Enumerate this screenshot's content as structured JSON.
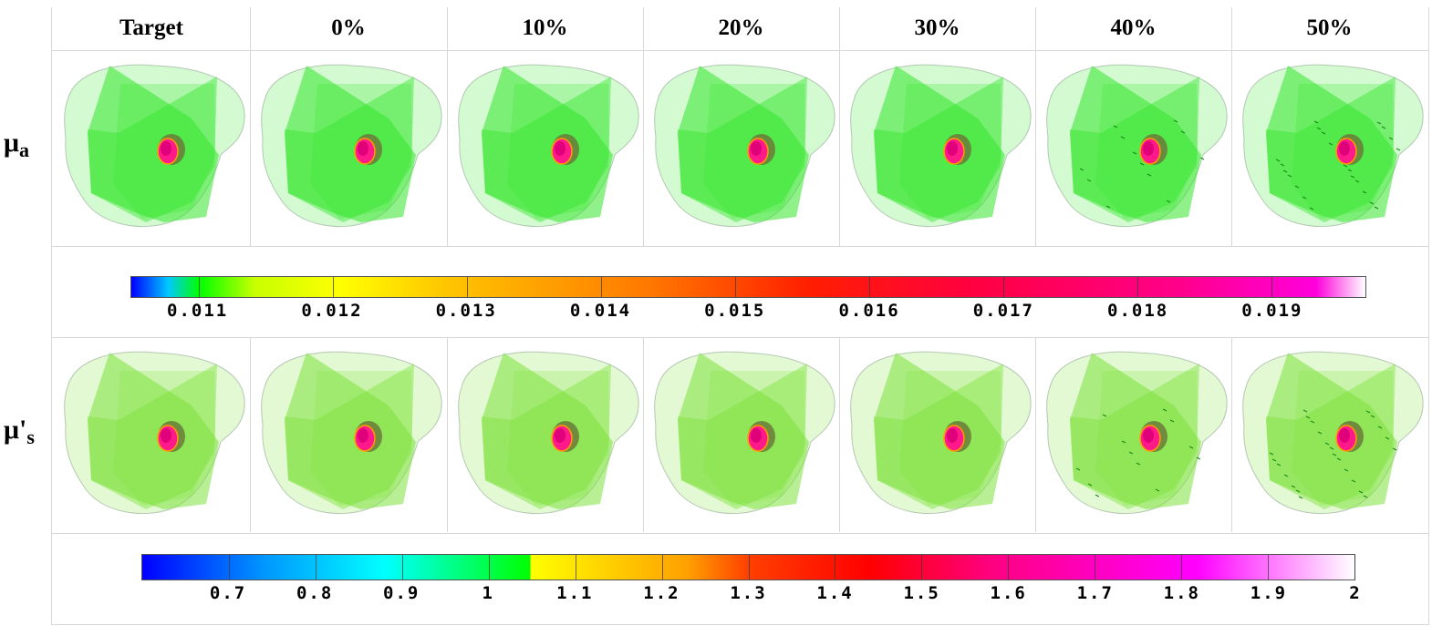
{
  "columns": [
    "Target",
    "0%",
    "10%",
    "20%",
    "30%",
    "40%",
    "50%"
  ],
  "rows": [
    {
      "symbol": "μ",
      "sub": "a",
      "prime": false,
      "tint": "#35e62c",
      "noise": [
        0,
        0,
        0,
        0,
        0,
        2,
        4
      ]
    },
    {
      "symbol": "μ",
      "sub": "s",
      "prime": true,
      "tint": "#7ee23c",
      "noise": [
        0,
        0,
        0,
        0,
        0,
        2,
        4
      ]
    }
  ],
  "colorbars": [
    {
      "name": "mua-colorbar",
      "range": [
        0.0105,
        0.0197
      ],
      "ticks": [
        0.011,
        0.012,
        0.013,
        0.014,
        0.015,
        0.016,
        0.017,
        0.018,
        0.019
      ],
      "tick_labels": [
        "0.011",
        "0.012",
        "0.013",
        "0.014",
        "0.015",
        "0.016",
        "0.017",
        "0.018",
        "0.019"
      ],
      "colors": [
        "#0000ff",
        "#00c8ff",
        "#00ff00",
        "#c8ff00",
        "#ffff00",
        "#ffc800",
        "#ff7800",
        "#ff1e00",
        "#ff0040",
        "#ff008c",
        "#ff00dc",
        "#ffffff"
      ],
      "stops": [
        0,
        0.03,
        0.055,
        0.1,
        0.17,
        0.25,
        0.42,
        0.55,
        0.68,
        0.85,
        0.96,
        1
      ]
    },
    {
      "name": "mus-colorbar",
      "range": [
        0.6,
        2.0
      ],
      "ticks": [
        0.7,
        0.8,
        0.9,
        1,
        1.1,
        1.2,
        1.3,
        1.4,
        1.5,
        1.6,
        1.7,
        1.8,
        1.9,
        2
      ],
      "tick_labels": [
        "0.7",
        "0.8",
        "0.9",
        "1",
        "1.1",
        "1.2",
        "1.3",
        "1.4",
        "1.5",
        "1.6",
        "1.7",
        "1.8",
        "1.9",
        "2"
      ],
      "colors": [
        "#0000ff",
        "#0096ff",
        "#00ffff",
        "#00ff00",
        "#ffff00",
        "#ffa000",
        "#ff4000",
        "#ff0000",
        "#ff0080",
        "#ff00ff",
        "#ffffff"
      ],
      "stops": [
        0,
        0.1,
        0.2,
        0.32,
        0.32,
        0.45,
        0.5,
        0.6,
        0.7,
        0.87,
        1
      ]
    }
  ]
}
